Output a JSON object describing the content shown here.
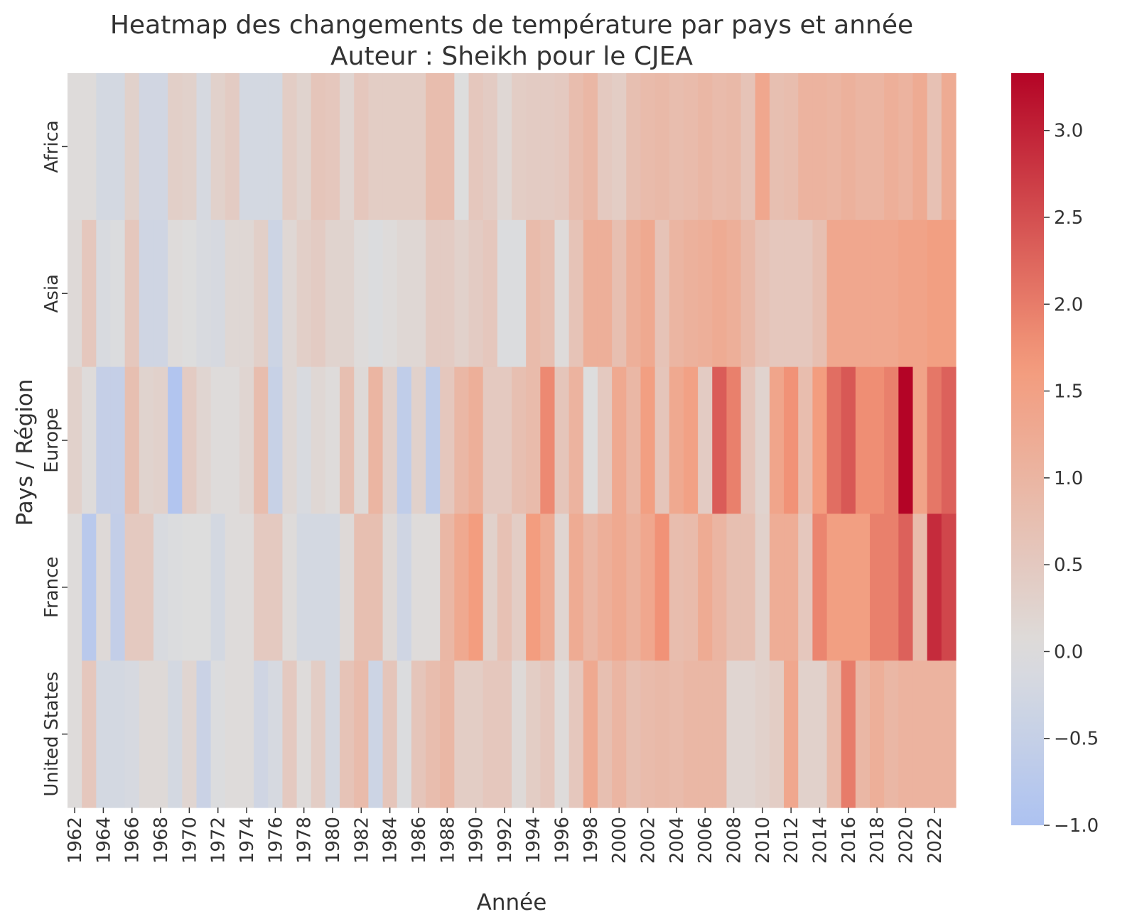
{
  "chart_data": {
    "type": "heatmap",
    "title": "Heatmap des changements de température par pays et année",
    "subtitle": "Auteur : Sheikh pour le CJEA",
    "xlabel": "Année",
    "ylabel": "Pays / Région",
    "rows": [
      "Africa",
      "Asia",
      "Europe",
      "France",
      "United States"
    ],
    "x": [
      1962,
      1963,
      1964,
      1965,
      1966,
      1967,
      1968,
      1969,
      1970,
      1971,
      1972,
      1973,
      1974,
      1975,
      1976,
      1977,
      1978,
      1979,
      1980,
      1981,
      1982,
      1983,
      1984,
      1985,
      1986,
      1987,
      1988,
      1989,
      1990,
      1991,
      1992,
      1993,
      1994,
      1995,
      1996,
      1997,
      1998,
      1999,
      2000,
      2001,
      2002,
      2003,
      2004,
      2005,
      2006,
      2007,
      2008,
      2009,
      2010,
      2011,
      2012,
      2013,
      2014,
      2015,
      2016,
      2017,
      2018,
      2019,
      2020,
      2021,
      2022,
      2023
    ],
    "x_tick_labels": [
      "1962",
      "1964",
      "1966",
      "1968",
      "1970",
      "1972",
      "1974",
      "1976",
      "1978",
      "1980",
      "1982",
      "1984",
      "1986",
      "1988",
      "1990",
      "1992",
      "1994",
      "1996",
      "1998",
      "2000",
      "2002",
      "2004",
      "2006",
      "2008",
      "2010",
      "2012",
      "2014",
      "2016",
      "2018",
      "2020",
      "2022"
    ],
    "colorbar": {
      "colormap": "coolwarm",
      "min": -1.0,
      "max": 3.33,
      "ticks": [
        -1.0,
        -0.5,
        0.0,
        0.5,
        1.0,
        1.5,
        2.0,
        2.5,
        3.0
      ],
      "tick_labels": [
        "−1.0",
        "−0.5",
        "0.0",
        "0.5",
        "1.0",
        "1.5",
        "2.0",
        "2.5",
        "3.0"
      ]
    },
    "values": [
      [
        0.05,
        0.05,
        -0.2,
        -0.2,
        0.3,
        -0.25,
        -0.25,
        0.35,
        0.3,
        -0.15,
        0.3,
        0.45,
        -0.2,
        -0.2,
        -0.2,
        0.4,
        0.25,
        0.6,
        0.55,
        0.2,
        0.55,
        0.4,
        0.4,
        0.4,
        0.4,
        0.8,
        0.8,
        0.0,
        0.55,
        0.45,
        0.15,
        0.4,
        0.45,
        0.45,
        0.5,
        0.8,
        0.95,
        0.5,
        0.4,
        0.75,
        0.85,
        0.9,
        0.8,
        0.85,
        0.95,
        0.85,
        0.9,
        0.65,
        1.35,
        0.75,
        0.8,
        1.05,
        1.05,
        1.0,
        1.1,
        1.0,
        1.0,
        1.15,
        1.05,
        1.25,
        0.7,
        1.25
      ],
      [
        0.1,
        0.55,
        -0.1,
        -0.05,
        0.55,
        -0.3,
        -0.3,
        0.05,
        0.0,
        -0.1,
        -0.15,
        0.15,
        0.15,
        0.35,
        -0.35,
        0.15,
        0.35,
        0.45,
        0.25,
        0.25,
        0.05,
        -0.05,
        0.05,
        0.15,
        0.15,
        0.45,
        0.45,
        0.3,
        0.45,
        0.55,
        -0.05,
        -0.05,
        0.85,
        0.75,
        0.05,
        0.65,
        1.15,
        1.15,
        0.75,
        1.15,
        1.3,
        0.65,
        1.0,
        1.1,
        1.15,
        1.25,
        1.15,
        0.9,
        0.65,
        0.55,
        0.55,
        0.55,
        0.75,
        1.35,
        1.35,
        1.35,
        1.35,
        1.35,
        1.45,
        1.45,
        1.55,
        1.55
      ],
      [
        0.3,
        0.05,
        -0.5,
        -0.5,
        0.75,
        0.25,
        0.3,
        -0.9,
        0.45,
        0.2,
        0.05,
        0.05,
        0.2,
        0.8,
        -0.45,
        0.15,
        -0.1,
        0.15,
        0.05,
        0.75,
        0.1,
        1.0,
        0.3,
        -0.6,
        0.3,
        -0.6,
        0.55,
        0.95,
        1.15,
        0.5,
        0.5,
        0.75,
        0.85,
        1.85,
        0.6,
        1.05,
        0.0,
        0.5,
        1.3,
        0.95,
        1.55,
        0.6,
        1.3,
        1.5,
        0.45,
        2.35,
        1.95,
        0.6,
        0.25,
        1.4,
        1.75,
        0.8,
        1.6,
        2.15,
        2.4,
        1.8,
        1.8,
        1.95,
        3.33,
        1.45,
        2.05,
        2.3
      ],
      [
        0.05,
        -0.75,
        0.1,
        -0.55,
        0.5,
        0.5,
        -0.1,
        -0.05,
        0.0,
        0.0,
        -0.2,
        0.05,
        0.05,
        0.5,
        0.5,
        0.05,
        -0.2,
        -0.2,
        -0.2,
        0.1,
        0.75,
        0.75,
        0.1,
        -0.3,
        0.05,
        0.05,
        0.95,
        1.3,
        1.6,
        0.3,
        0.7,
        0.4,
        1.6,
        1.25,
        0.2,
        1.25,
        0.95,
        1.15,
        1.3,
        1.1,
        1.35,
        1.75,
        0.8,
        0.85,
        1.25,
        1.0,
        0.75,
        0.75,
        0.3,
        1.2,
        1.2,
        0.55,
        1.9,
        1.55,
        1.55,
        1.55,
        1.95,
        1.95,
        2.3,
        0.85,
        2.9,
        2.6
      ],
      [
        0.05,
        0.55,
        -0.2,
        -0.2,
        -0.15,
        0.1,
        0.1,
        -0.2,
        0.2,
        -0.4,
        -0.05,
        0.05,
        0.05,
        -0.3,
        -0.15,
        0.5,
        0.05,
        0.4,
        -0.2,
        0.65,
        0.85,
        -0.35,
        0.6,
        -0.05,
        0.6,
        0.8,
        0.95,
        0.4,
        0.4,
        0.55,
        0.55,
        0.1,
        0.4,
        0.55,
        0.05,
        0.55,
        1.3,
        0.75,
        1.0,
        0.75,
        0.85,
        0.9,
        0.85,
        0.95,
        0.95,
        0.95,
        0.2,
        0.2,
        0.3,
        0.4,
        1.35,
        0.3,
        0.3,
        0.85,
        2.0,
        0.95,
        1.15,
        0.95,
        1.05,
        1.05,
        1.05,
        1.05
      ]
    ]
  }
}
